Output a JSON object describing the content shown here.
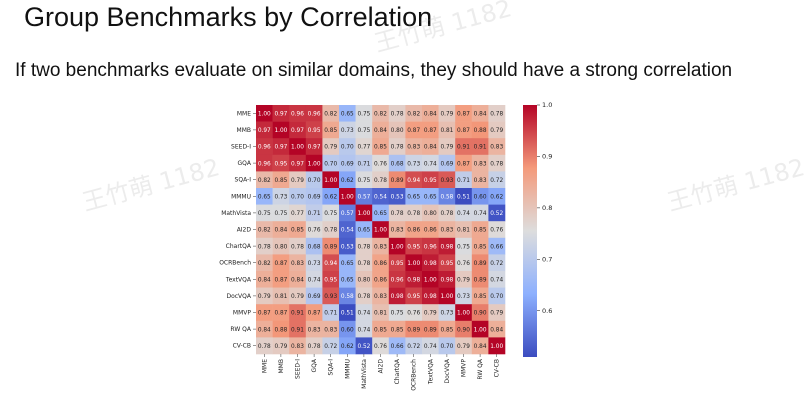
{
  "slide": {
    "title": "Group Benchmarks by Correlation",
    "subtitle": "If two benchmarks evaluate on similar domains, they should have a strong correlation",
    "watermark": "王竹萌 1182"
  },
  "chart_data": {
    "type": "heatmap",
    "title": "",
    "labels": [
      "MME",
      "MMB",
      "SEED-I",
      "GQA",
      "SQA-I",
      "MMMU",
      "MathVista",
      "AI2D",
      "ChartQA",
      "OCRBench",
      "TextVQA",
      "DocVQA",
      "MMVP",
      "RW QA",
      "CV-CB"
    ],
    "matrix": [
      [
        1.0,
        0.97,
        0.96,
        0.96,
        0.82,
        0.65,
        0.75,
        0.82,
        0.78,
        0.82,
        0.84,
        0.79,
        0.87,
        0.84,
        0.78
      ],
      [
        0.97,
        1.0,
        0.97,
        0.95,
        0.85,
        0.73,
        0.75,
        0.84,
        0.8,
        0.87,
        0.87,
        0.81,
        0.87,
        0.88,
        0.79
      ],
      [
        0.96,
        0.97,
        1.0,
        0.97,
        0.79,
        0.7,
        0.77,
        0.85,
        0.78,
        0.83,
        0.84,
        0.79,
        0.91,
        0.91,
        0.83
      ],
      [
        0.96,
        0.95,
        0.97,
        1.0,
        0.7,
        0.69,
        0.71,
        0.76,
        0.68,
        0.73,
        0.74,
        0.69,
        0.87,
        0.83,
        0.78
      ],
      [
        0.82,
        0.85,
        0.79,
        0.7,
        1.0,
        0.62,
        0.75,
        0.78,
        0.89,
        0.94,
        0.95,
        0.93,
        0.71,
        0.83,
        0.72
      ],
      [
        0.65,
        0.73,
        0.7,
        0.69,
        0.62,
        1.0,
        0.57,
        0.54,
        0.53,
        0.65,
        0.65,
        0.58,
        0.51,
        0.6,
        0.62
      ],
      [
        0.75,
        0.75,
        0.77,
        0.71,
        0.75,
        0.57,
        1.0,
        0.65,
        0.78,
        0.78,
        0.8,
        0.78,
        0.74,
        0.74,
        0.52
      ],
      [
        0.82,
        0.84,
        0.85,
        0.76,
        0.78,
        0.54,
        0.65,
        1.0,
        0.83,
        0.86,
        0.86,
        0.83,
        0.81,
        0.85,
        0.76
      ],
      [
        0.78,
        0.8,
        0.78,
        0.68,
        0.89,
        0.53,
        0.78,
        0.83,
        1.0,
        0.95,
        0.96,
        0.98,
        0.75,
        0.85,
        0.66
      ],
      [
        0.82,
        0.87,
        0.83,
        0.73,
        0.94,
        0.65,
        0.78,
        0.86,
        0.95,
        1.0,
        0.98,
        0.95,
        0.76,
        0.89,
        0.72
      ],
      [
        0.84,
        0.87,
        0.84,
        0.74,
        0.95,
        0.65,
        0.8,
        0.86,
        0.96,
        0.98,
        1.0,
        0.98,
        0.79,
        0.89,
        0.74
      ],
      [
        0.79,
        0.81,
        0.79,
        0.69,
        0.93,
        0.58,
        0.78,
        0.83,
        0.98,
        0.95,
        0.98,
        1.0,
        0.73,
        0.85,
        0.7
      ],
      [
        0.87,
        0.87,
        0.91,
        0.87,
        0.71,
        0.51,
        0.74,
        0.81,
        0.75,
        0.76,
        0.79,
        0.73,
        1.0,
        0.9,
        0.79
      ],
      [
        0.84,
        0.88,
        0.91,
        0.83,
        0.83,
        0.6,
        0.74,
        0.85,
        0.85,
        0.89,
        0.89,
        0.85,
        0.9,
        1.0,
        0.84
      ],
      [
        0.78,
        0.79,
        0.83,
        0.78,
        0.72,
        0.62,
        0.52,
        0.76,
        0.66,
        0.72,
        0.74,
        0.7,
        0.79,
        0.84,
        1.0
      ]
    ],
    "colorbar": {
      "min": 0.51,
      "max": 1.0,
      "ticks": [
        1.0,
        0.9,
        0.8,
        0.7,
        0.6
      ],
      "tick_labels": [
        "1.0",
        "0.9",
        "0.8",
        "0.7",
        "0.6"
      ]
    },
    "colormap": [
      "#3b4cc0",
      "#8db0fe",
      "#dddddd",
      "#f49a7b",
      "#b40426"
    ],
    "cell_value_format": "2dp",
    "grid": false,
    "legend": "right"
  }
}
